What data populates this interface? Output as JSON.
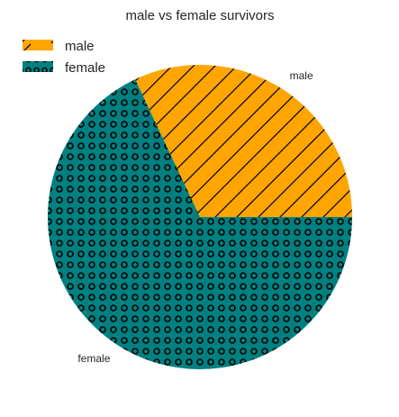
{
  "chart_data": {
    "type": "pie",
    "title": "male vs female survivors",
    "slices": [
      {
        "label": "male",
        "value": 0.32,
        "color": "#FFA500",
        "pattern": "diagonal-hatch"
      },
      {
        "label": "female",
        "value": 0.68,
        "color": "#008080",
        "pattern": "circles"
      }
    ],
    "start_angle": 0,
    "direction": "counterclockwise",
    "legend": {
      "position": "top-left",
      "entries": [
        "male",
        "female"
      ]
    }
  }
}
